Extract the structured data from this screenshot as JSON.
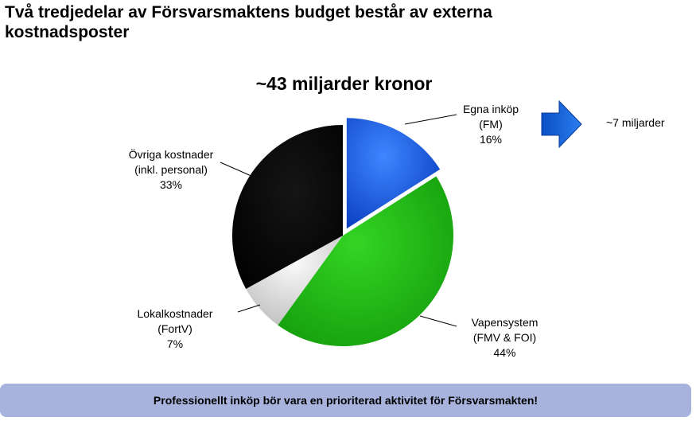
{
  "slide": {
    "title": "Två tredjedelar av Försvarsmaktens budget består av externa kostnadsposter",
    "banner": "Professionellt inköp bör vara en prioriterad aktivitet för Försvarsmakten!"
  },
  "arrow": {
    "note": "~7 miljarder",
    "color": "#1464d2"
  },
  "chart_data": {
    "type": "pie",
    "title": "~43 miljarder kronor",
    "legend": "none",
    "slices": [
      {
        "key": "egna",
        "lines": [
          "Egna inköp",
          "(FM)"
        ],
        "pct_label": "16%",
        "value": 16,
        "color": "#1f5fe0",
        "exploded": true
      },
      {
        "key": "vapen",
        "lines": [
          "Vapensystem",
          "(FMV & FOI)"
        ],
        "pct_label": "44%",
        "value": 44,
        "color": "#22b814",
        "exploded": false
      },
      {
        "key": "lokal",
        "lines": [
          "Lokalkostnader",
          "(FortV)"
        ],
        "pct_label": "7%",
        "value": 7,
        "color": "#e4e4e4",
        "exploded": false
      },
      {
        "key": "ovriga",
        "lines": [
          "Övriga kostnader",
          "(inkl. personal)"
        ],
        "pct_label": "33%",
        "value": 33,
        "color": "#080808",
        "exploded": false
      }
    ]
  }
}
